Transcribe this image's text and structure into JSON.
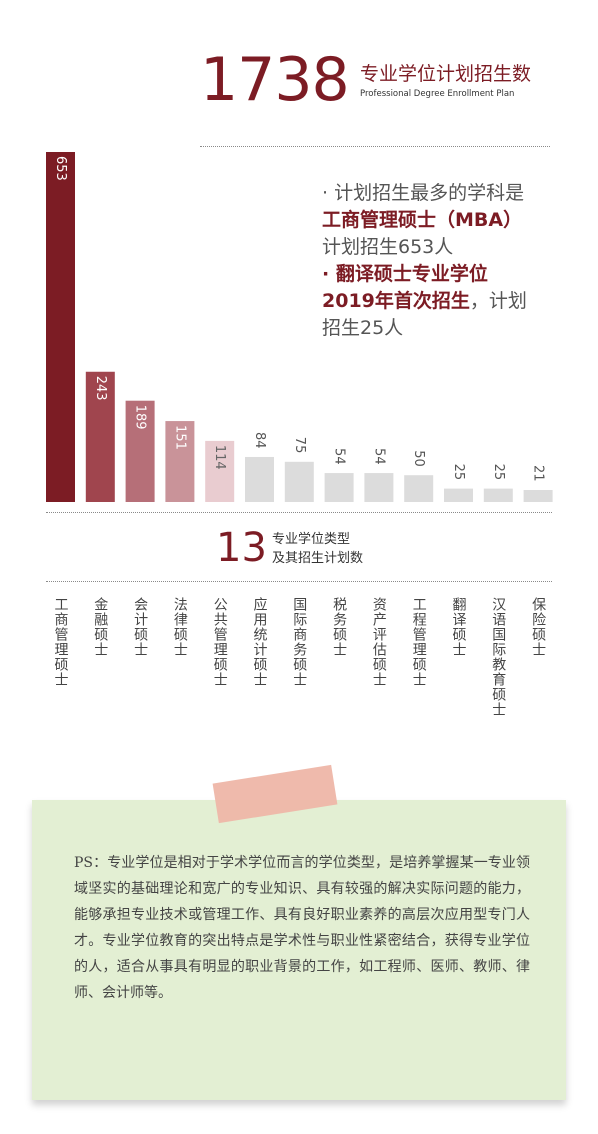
{
  "header": {
    "total": "1738",
    "title_cn": "专业学位计划招生数",
    "title_en": "Professional Degree Enrollment Plan"
  },
  "note": {
    "line1_prefix": "· ",
    "line1": "计划招生最多的学科是",
    "line2": "工商管理硕士（MBA）",
    "line3": "计划招生653人",
    "line4_prefix": "· ",
    "line4": "翻译硕士专业学位",
    "line5_hl": "2019年首次招生",
    "line5_rest": "，计划",
    "line6": "招生25人"
  },
  "summary": {
    "count": "13",
    "label_line1": "专业学位类型",
    "label_line2": "及其招生计划数"
  },
  "chart_data": {
    "type": "bar",
    "title": "",
    "categories": [
      "工商管理硕士",
      "金融硕士",
      "会计硕士",
      "法律硕士",
      "公共管理硕士",
      "应用统计硕士",
      "国际商务硕士",
      "税务硕士",
      "资产评估硕士",
      "工程管理硕士",
      "翻译硕士",
      "汉语国际教育硕士",
      "保险硕士"
    ],
    "values": [
      653,
      243,
      189,
      151,
      114,
      84,
      75,
      54,
      54,
      50,
      25,
      25,
      21
    ],
    "colors": [
      "#7c1c24",
      "#a0454e",
      "#b66f78",
      "#c99399",
      "#e9ccd0",
      "#dcdcdc",
      "#dcdcdc",
      "#dcdcdc",
      "#dcdcdc",
      "#dcdcdc",
      "#dcdcdc",
      "#dcdcdc",
      "#dcdcdc"
    ],
    "label_colors": [
      "#ffffff",
      "#ffffff",
      "#ffffff",
      "#ffffff",
      "#666666",
      "#555555",
      "#555555",
      "#555555",
      "#555555",
      "#555555",
      "#555555",
      "#555555",
      "#555555"
    ],
    "ylim": [
      0,
      653
    ],
    "grid": false,
    "legend": "none"
  },
  "ps": {
    "text": "PS：专业学位是相对于学术学位而言的学位类型，是培养掌握某一专业领域坚实的基础理论和宽广的专业知识、具有较强的解决实际问题的能力，能够承担专业技术或管理工作、具有良好职业素养的高层次应用型专门人才。专业学位教育的突出特点是学术性与职业性紧密结合，获得专业学位的人，适合从事具有明显的职业背景的工作，如工程师、医师、教师、律师、会计师等。"
  },
  "colors": {
    "accent": "#7c1c24",
    "ps_background": "#e3efd3",
    "tape": "#eeb6a8"
  }
}
